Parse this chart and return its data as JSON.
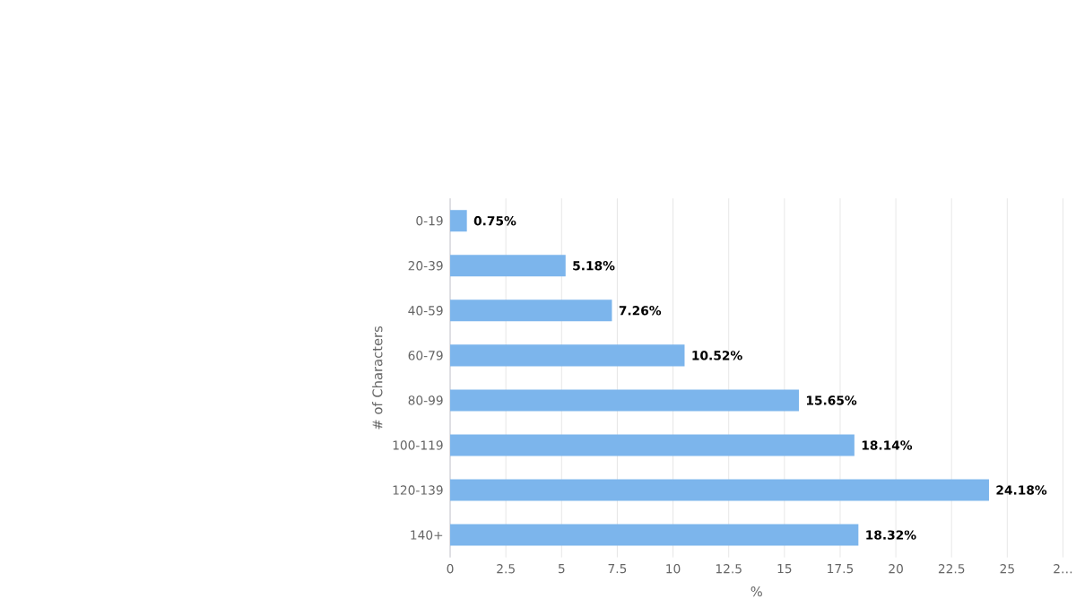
{
  "chart_data": {
    "type": "bar",
    "orientation": "horizontal",
    "xlabel": "%",
    "ylabel": "# of Characters",
    "categories": [
      "0-19",
      "20-39",
      "40-59",
      "60-79",
      "80-99",
      "100-119",
      "120-139",
      "140+"
    ],
    "values": [
      0.75,
      5.18,
      7.26,
      10.52,
      15.65,
      18.14,
      24.18,
      18.32
    ],
    "value_labels": [
      "0.75%",
      "5.18%",
      "7.26%",
      "10.52%",
      "15.65%",
      "18.14%",
      "24.18%",
      "18.32%"
    ],
    "color": "#7cb5ec",
    "xlim": [
      0,
      27.5
    ],
    "xticks": [
      0,
      2.5,
      5,
      7.5,
      10,
      12.5,
      15,
      17.5,
      20,
      22.5,
      25,
      {
        "value": 27.5,
        "label": "2…"
      }
    ],
    "grid": "x"
  }
}
